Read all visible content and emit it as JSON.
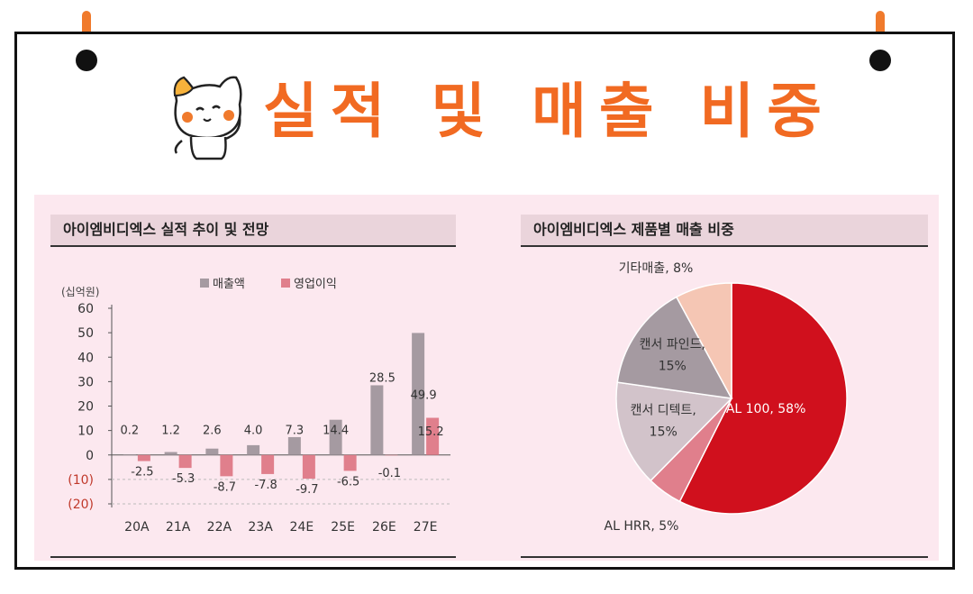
{
  "page": {
    "title": "실적 및 매출 비중",
    "colors": {
      "title": "#f16a22",
      "panel_bg": "#fce8ef",
      "header_bg": "#ead4db"
    }
  },
  "left_section": {
    "title": "아이엠비디엑스 실적 추이 및 전망",
    "unit_label": "(십억원)"
  },
  "right_section": {
    "title": "아이엠비디엑스 제품별 매출 비중"
  },
  "chart_data": [
    {
      "type": "bar",
      "categories": [
        "20A",
        "21A",
        "22A",
        "23A",
        "24E",
        "25E",
        "26E",
        "27E"
      ],
      "series": [
        {
          "name": "매출액",
          "color": "#a59aa1",
          "values": [
            0.2,
            1.2,
            2.6,
            4.0,
            7.3,
            14.4,
            28.5,
            49.9
          ]
        },
        {
          "name": "영업이익",
          "color": "#e07f8c",
          "values": [
            -2.5,
            -5.3,
            -8.7,
            -7.8,
            -9.7,
            -6.5,
            -0.1,
            15.2
          ]
        }
      ],
      "ylim": [
        -20,
        60
      ],
      "yticks": [
        60,
        50,
        40,
        30,
        20,
        10,
        0,
        -10,
        -20
      ],
      "ytick_labels": [
        "60",
        "50",
        "40",
        "30",
        "20",
        "10",
        "0",
        "(10)",
        "(20)"
      ],
      "revenue_labels": [
        "0.2",
        "1.2",
        "2.6",
        "4.0",
        "7.3",
        "14.4",
        "28.5",
        "49.9"
      ],
      "op_labels": [
        "-2.5",
        "-5.3",
        "-8.7",
        "-7.8",
        "-9.7",
        "-6.5",
        "-0.1",
        "15.2"
      ],
      "legend": "top",
      "grid": false
    },
    {
      "type": "pie",
      "slices": [
        {
          "label": "AL 100, 58%",
          "value": 58,
          "color": "#d0101d"
        },
        {
          "label": "AL HRR, 5%",
          "value": 5,
          "color": "#e07f8c"
        },
        {
          "label_lines": [
            "캔서 디텍트,",
            "15%"
          ],
          "value": 15,
          "color": "#d2c3ca"
        },
        {
          "label_lines": [
            "캔서 파인드,",
            "15%"
          ],
          "value": 15,
          "color": "#a59aa1"
        },
        {
          "label": "기타매출, 8%",
          "value": 8,
          "color": "#f5c6b4"
        }
      ],
      "start_angle_deg": 0,
      "direction": "clockwise"
    }
  ]
}
